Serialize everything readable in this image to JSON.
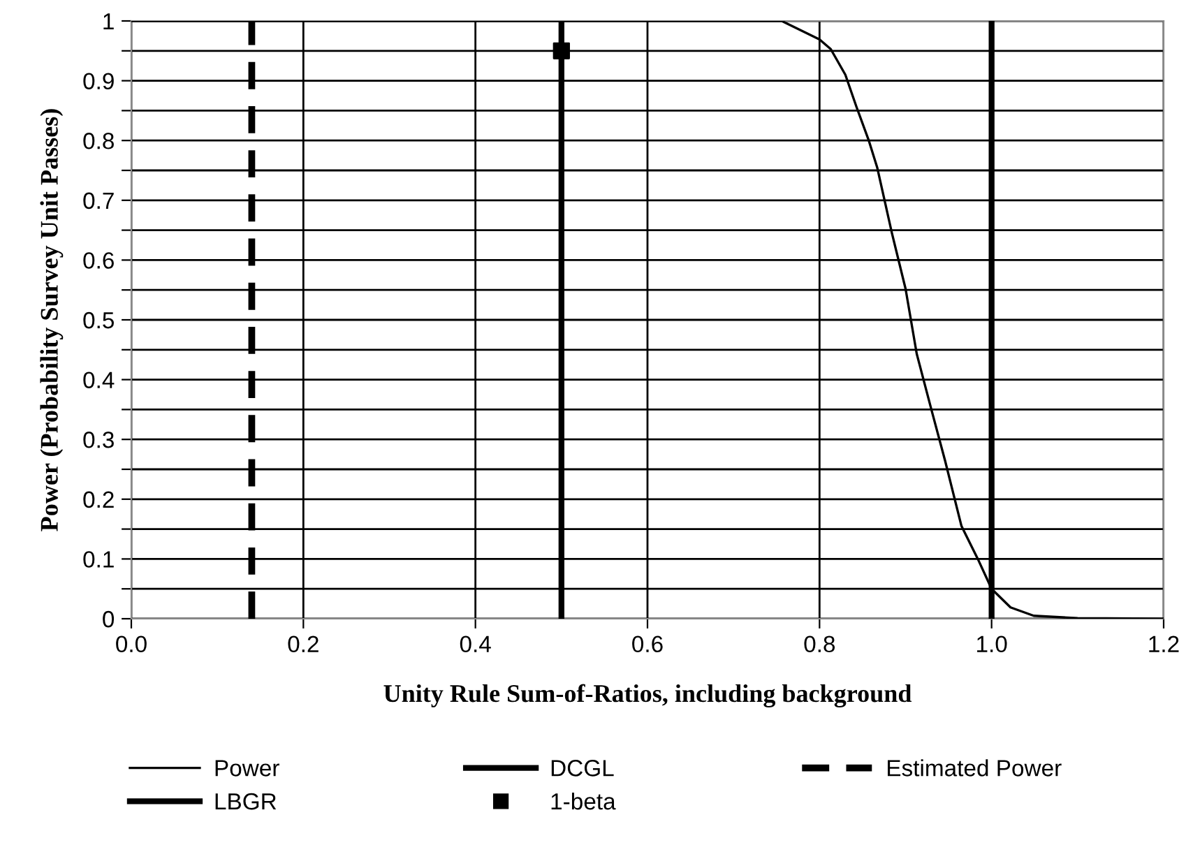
{
  "chart_data": {
    "type": "line",
    "xlabel": "Unity Rule Sum-of-Ratios, including background",
    "ylabel": "Power (Probability Survey Unit Passes)",
    "xlim": [
      0,
      1.2
    ],
    "xticks": [
      {
        "value": 0,
        "label": "0.0"
      },
      {
        "value": 0.2,
        "label": "0.2"
      },
      {
        "value": 0.4,
        "label": "0.4"
      },
      {
        "value": 0.6,
        "label": "0.6"
      },
      {
        "value": 0.8,
        "label": "0.8"
      },
      {
        "value": 1.0,
        "label": "1.0"
      },
      {
        "value": 1.2,
        "label": "1.2"
      }
    ],
    "ylim": [
      0,
      1
    ],
    "yticks": [
      0,
      {
        "value": 0.05,
        "label": null
      },
      0.1,
      {
        "value": 0.15,
        "label": null
      },
      0.2,
      {
        "value": 0.25,
        "label": null
      },
      0.3,
      {
        "value": 0.35,
        "label": null
      },
      0.4,
      {
        "value": 0.45,
        "label": null
      },
      0.5,
      {
        "value": 0.55,
        "label": null
      },
      0.6,
      {
        "value": 0.65,
        "label": null
      },
      0.7,
      {
        "value": 0.75,
        "label": null
      },
      0.8,
      {
        "value": 0.85,
        "label": null
      },
      0.9,
      {
        "value": 0.95,
        "label": null
      },
      1
    ],
    "grid": true,
    "legend": "bottom",
    "series": [
      {
        "name": "Power",
        "color": "#000000",
        "x": [
          0,
          0.756,
          0.8,
          0.813,
          0.83,
          0.843,
          0.857,
          0.867,
          0.884,
          0.9,
          0.913,
          0.93,
          0.946,
          0.965,
          0.984,
          1.0,
          1.022,
          1.049,
          1.1,
          1.2
        ],
        "values": [
          1,
          1,
          0.969,
          0.953,
          0.91,
          0.856,
          0.801,
          0.755,
          0.646,
          0.552,
          0.443,
          0.35,
          0.264,
          0.155,
          0.1,
          0.05,
          0.019,
          0.005,
          0.001,
          0
        ]
      },
      {
        "name": "1-beta",
        "type": "scatter",
        "color": "#000000",
        "marker": "square",
        "x": [
          0.5
        ],
        "values": [
          0.95
        ]
      }
    ],
    "ref_lines": [
      {
        "axis": "x",
        "value": 1.0,
        "label": "DCGL",
        "color": "#000000",
        "line_style": "solid"
      },
      {
        "axis": "x",
        "value": 0.14,
        "label": "Estimated Power",
        "color": "#000000",
        "line_style": "dashed"
      },
      {
        "axis": "x",
        "value": 0.5,
        "label": "LBGR",
        "color": "#000000",
        "line_style": "solid"
      }
    ]
  }
}
